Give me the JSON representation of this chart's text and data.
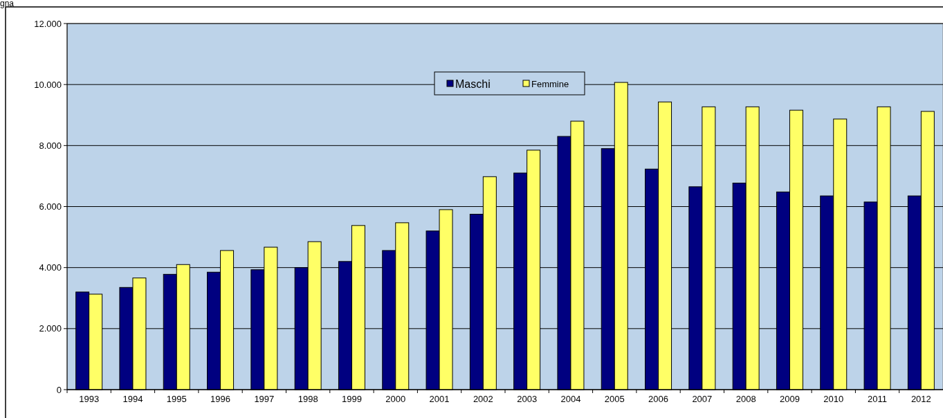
{
  "chart_data": {
    "type": "bar",
    "title": "gna",
    "categories": [
      "1993",
      "1994",
      "1995",
      "1996",
      "1997",
      "1998",
      "1999",
      "2000",
      "2001",
      "2002",
      "2003",
      "2004",
      "2005",
      "2006",
      "2007",
      "2008",
      "2009",
      "2010",
      "2011",
      "2012"
    ],
    "series": [
      {
        "name": "Maschi",
        "color": "#000080",
        "values": [
          3200,
          3350,
          3780,
          3850,
          3930,
          4000,
          4200,
          4560,
          5200,
          5750,
          7100,
          8300,
          7900,
          7230,
          6650,
          6770,
          6480,
          6350,
          6150,
          6350
        ]
      },
      {
        "name": "Femmine",
        "color": "#ffff66",
        "values": [
          3130,
          3660,
          4100,
          4560,
          4670,
          4850,
          5380,
          5470,
          5900,
          6980,
          7850,
          8800,
          10070,
          9430,
          9270,
          9270,
          9160,
          8870,
          9270,
          9120
        ]
      }
    ],
    "ylim": [
      0,
      12000
    ],
    "yticks": [
      {
        "value": 0,
        "label": "0"
      },
      {
        "value": 2000,
        "label": "2.000"
      },
      {
        "value": 4000,
        "label": "4.000"
      },
      {
        "value": 6000,
        "label": "6.000"
      },
      {
        "value": 8000,
        "label": "8.000"
      },
      {
        "value": 10000,
        "label": "10.000"
      },
      {
        "value": 12000,
        "label": "12.000"
      }
    ],
    "grid": "y",
    "legend": "top"
  }
}
